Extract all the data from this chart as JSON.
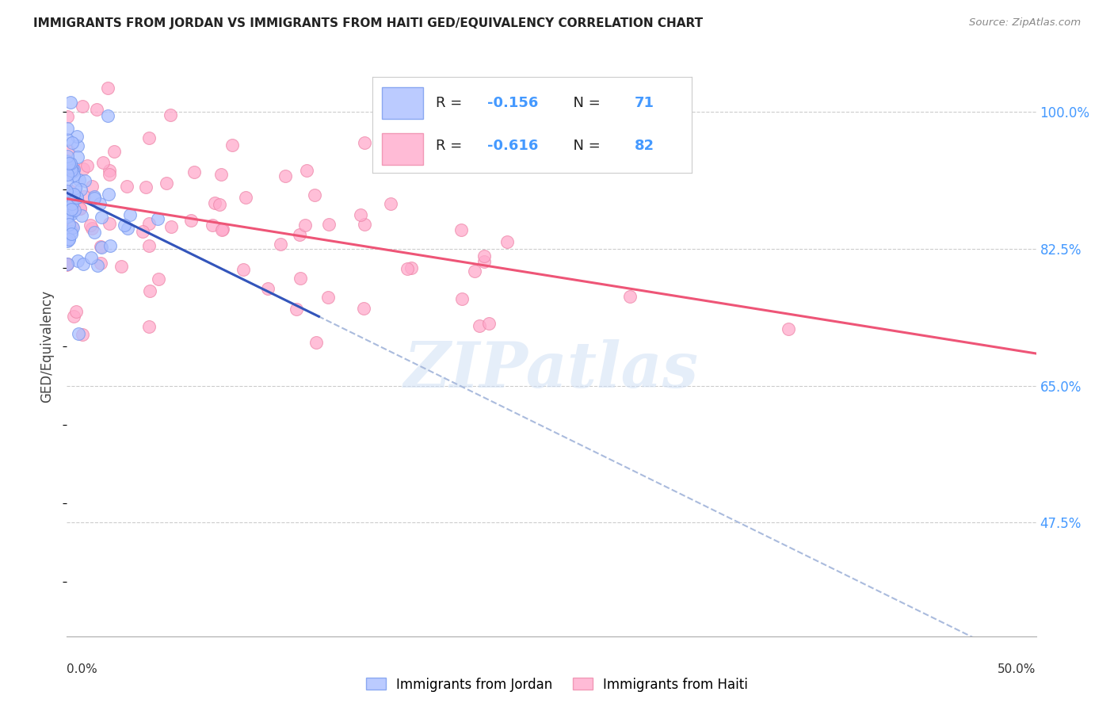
{
  "title": "IMMIGRANTS FROM JORDAN VS IMMIGRANTS FROM HAITI GED/EQUIVALENCY CORRELATION CHART",
  "source": "Source: ZipAtlas.com",
  "ylabel": "GED/Equivalency",
  "xlim": [
    0.0,
    50.0
  ],
  "ylim": [
    33.0,
    107.0
  ],
  "yticks": [
    47.5,
    65.0,
    82.5,
    100.0
  ],
  "jordan_color": "#aabfff",
  "jordan_edge_color": "#7799ee",
  "haiti_color": "#ffaacc",
  "haiti_edge_color": "#ee88aa",
  "jordan_line_color": "#3355bb",
  "jordan_dash_color": "#aabbdd",
  "haiti_line_color": "#ee5577",
  "jordan_R": -0.156,
  "jordan_N": 71,
  "haiti_R": -0.616,
  "haiti_N": 82,
  "watermark": "ZIPatlas",
  "legend_jordan": "Immigrants from Jordan",
  "legend_haiti": "Immigrants from Haiti",
  "background_color": "#ffffff",
  "grid_color": "#cccccc",
  "axis_color": "#aaaaaa",
  "title_color": "#222222",
  "source_color": "#888888",
  "right_label_color": "#4499ff",
  "jordan_intercept": 89.5,
  "jordan_slope": -0.35,
  "haiti_intercept": 91.0,
  "haiti_slope": -0.72
}
